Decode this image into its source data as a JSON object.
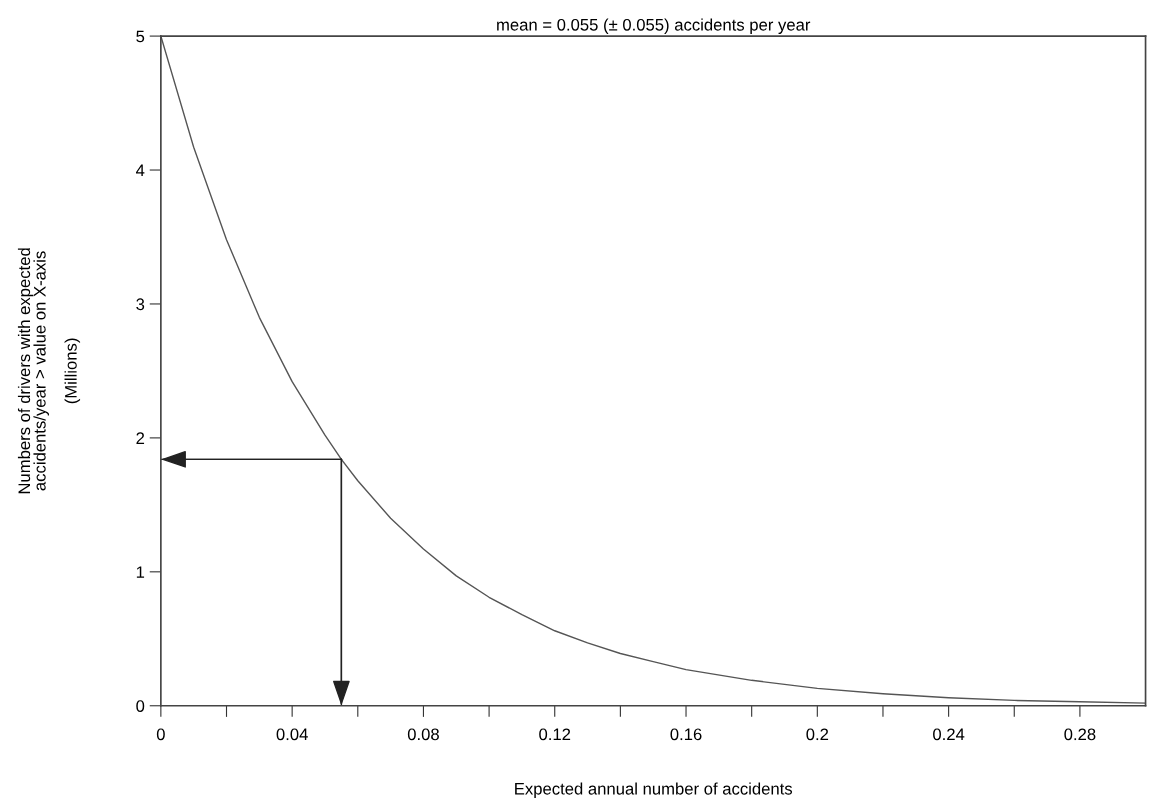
{
  "chart_data": {
    "type": "line",
    "xlabel": "Expected annual number of accidents",
    "ylabel": "Numbers of drivers with expected\naccidents/year > value on X-axis\n\n(Millions)",
    "title": "mean = 0.055 (± 0.055) accidents per year",
    "ref_lines": [
      {
        "axis": "y",
        "value": 1.84
      },
      {
        "axis": "x",
        "value": 0.055
      }
    ],
    "x": [
      0,
      0.01,
      0.02,
      0.03,
      0.04,
      0.05,
      0.055,
      0.06,
      0.07,
      0.08,
      0.09,
      0.1,
      0.11,
      0.12,
      0.13,
      0.14,
      0.15,
      0.16,
      0.18,
      0.2,
      0.22,
      0.24,
      0.26,
      0.28,
      0.3
    ],
    "series": [
      {
        "color": "#555555",
        "values": [
          5.0,
          4.17,
          3.48,
          2.9,
          2.42,
          2.02,
          1.84,
          1.68,
          1.4,
          1.17,
          0.97,
          0.81,
          0.68,
          0.56,
          0.47,
          0.39,
          0.33,
          0.27,
          0.19,
          0.13,
          0.09,
          0.06,
          0.04,
          0.03,
          0.02
        ]
      }
    ],
    "xlim": [
      0,
      0.3
    ],
    "xticks": [
      0,
      {
        "value": 0.02,
        "label": null
      },
      0.04,
      {
        "value": 0.06,
        "label": null
      },
      0.08,
      {
        "value": 0.1,
        "label": null
      },
      0.12,
      {
        "value": 0.14,
        "label": null
      },
      0.16,
      {
        "value": 0.18,
        "label": null
      },
      {
        "value": 0.2,
        "label": "0.2"
      },
      {
        "value": 0.22,
        "label": null
      },
      0.24,
      {
        "value": 0.26,
        "label": null
      },
      0.28
    ],
    "ylim": [
      0,
      5
    ],
    "yticks": [
      0,
      1,
      2,
      3,
      4,
      5
    ],
    "grid": false,
    "marker": "none",
    "line_style": "solid"
  }
}
